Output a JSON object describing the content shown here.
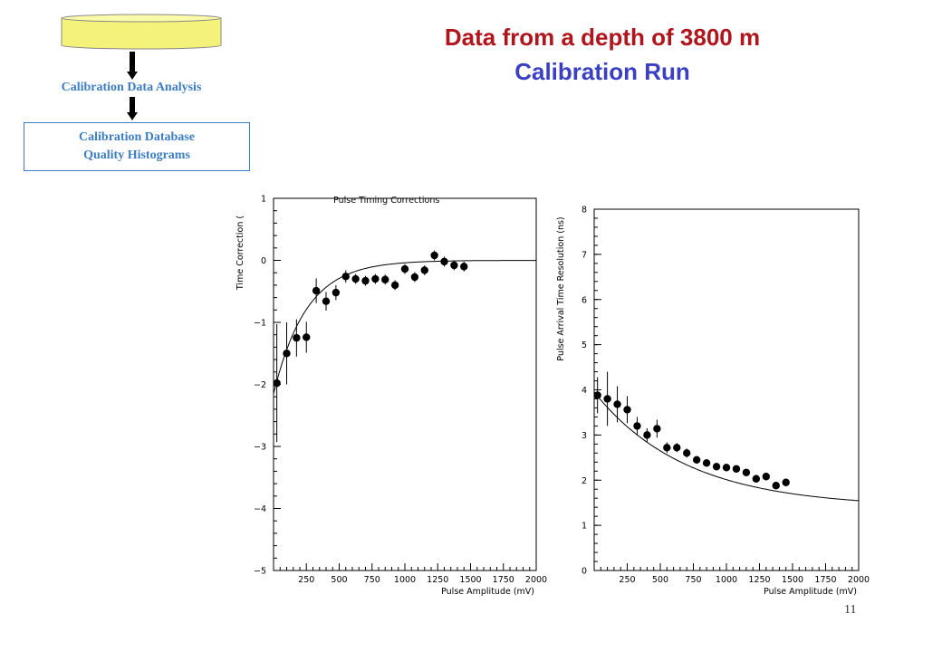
{
  "header": {
    "title": "Data from a depth of 3800 m",
    "subtitle": "Calibration Run"
  },
  "flow": {
    "step_label": "Calibration Data Analysis",
    "box_lines": [
      "Calibration Database",
      "Quality Histograms"
    ],
    "db_color": "#f4f27a"
  },
  "page_number": "11",
  "chart_data": [
    {
      "type": "scatter",
      "title": "Pulse Timing Corrections",
      "xlabel": "Pulse Amplitude (mV)",
      "ylabel": "Time Correction (",
      "xlim": [
        0,
        2000
      ],
      "ylim": [
        -5,
        1
      ],
      "xticks": [
        250,
        500,
        750,
        1000,
        1250,
        1500,
        1750,
        2000
      ],
      "yticks": [
        1,
        0,
        -1,
        -2,
        -3,
        -4,
        -5
      ],
      "ytick_labels": [
        "1",
        "0",
        "−1",
        "−2",
        "−3",
        "−4",
        "−5"
      ],
      "points": [
        {
          "x": 25,
          "y": -1.98,
          "err": 0.95
        },
        {
          "x": 100,
          "y": -1.5,
          "err": 0.5
        },
        {
          "x": 175,
          "y": -1.25,
          "err": 0.3
        },
        {
          "x": 250,
          "y": -1.24,
          "err": 0.25
        },
        {
          "x": 325,
          "y": -0.49,
          "err": 0.2
        },
        {
          "x": 400,
          "y": -0.66,
          "err": 0.15
        },
        {
          "x": 475,
          "y": -0.52,
          "err": 0.12
        },
        {
          "x": 550,
          "y": -0.26,
          "err": 0.1
        },
        {
          "x": 625,
          "y": -0.3,
          "err": 0.08
        },
        {
          "x": 700,
          "y": -0.33,
          "err": 0.08
        },
        {
          "x": 775,
          "y": -0.3,
          "err": 0.08
        },
        {
          "x": 850,
          "y": -0.31,
          "err": 0.08
        },
        {
          "x": 925,
          "y": -0.4,
          "err": 0.08
        },
        {
          "x": 1000,
          "y": -0.14,
          "err": 0.08
        },
        {
          "x": 1075,
          "y": -0.27,
          "err": 0.08
        },
        {
          "x": 1150,
          "y": -0.16,
          "err": 0.08
        },
        {
          "x": 1225,
          "y": 0.08,
          "err": 0.08
        },
        {
          "x": 1300,
          "y": -0.02,
          "err": 0.08
        },
        {
          "x": 1375,
          "y": -0.08,
          "err": 0.08
        },
        {
          "x": 1450,
          "y": -0.1,
          "err": 0.08
        }
      ],
      "fit": {
        "form": "a*exp(-x/tau)",
        "a": -2.15,
        "tau": 250
      }
    },
    {
      "type": "scatter",
      "title": "",
      "xlabel": "Pulse Amplitude (mV)",
      "ylabel": "Pulse Arrival Time Resolution (ns)",
      "xlim": [
        0,
        2000
      ],
      "ylim": [
        0,
        8
      ],
      "xticks": [
        250,
        500,
        750,
        1000,
        1250,
        1500,
        1750,
        2000
      ],
      "yticks": [
        0,
        1,
        2,
        3,
        4,
        5,
        6,
        7,
        8
      ],
      "ytick_labels": [
        "0",
        "1",
        "2",
        "3",
        "4",
        "5",
        "6",
        "7",
        "8"
      ],
      "points": [
        {
          "x": 25,
          "y": 3.88,
          "err": 0.4
        },
        {
          "x": 100,
          "y": 3.8,
          "err": 0.6
        },
        {
          "x": 175,
          "y": 3.68,
          "err": 0.4
        },
        {
          "x": 250,
          "y": 3.56,
          "err": 0.3
        },
        {
          "x": 325,
          "y": 3.2,
          "err": 0.2
        },
        {
          "x": 400,
          "y": 3.0,
          "err": 0.15
        },
        {
          "x": 475,
          "y": 3.14,
          "err": 0.2
        },
        {
          "x": 550,
          "y": 2.72,
          "err": 0.12
        },
        {
          "x": 625,
          "y": 2.72,
          "err": 0.1
        },
        {
          "x": 700,
          "y": 2.6,
          "err": 0.1
        },
        {
          "x": 775,
          "y": 2.45,
          "err": 0.08
        },
        {
          "x": 850,
          "y": 2.38,
          "err": 0.08
        },
        {
          "x": 925,
          "y": 2.3,
          "err": 0.08
        },
        {
          "x": 1000,
          "y": 2.28,
          "err": 0.08
        },
        {
          "x": 1075,
          "y": 2.25,
          "err": 0.08
        },
        {
          "x": 1150,
          "y": 2.17,
          "err": 0.08
        },
        {
          "x": 1225,
          "y": 2.03,
          "err": 0.08
        },
        {
          "x": 1300,
          "y": 2.08,
          "err": 0.08
        },
        {
          "x": 1375,
          "y": 1.88,
          "err": 0.08
        },
        {
          "x": 1450,
          "y": 1.95,
          "err": 0.08
        }
      ],
      "fit": {
        "form": "c+a*exp(-x/tau)",
        "c": 1.4,
        "a": 2.55,
        "tau": 700
      }
    }
  ]
}
